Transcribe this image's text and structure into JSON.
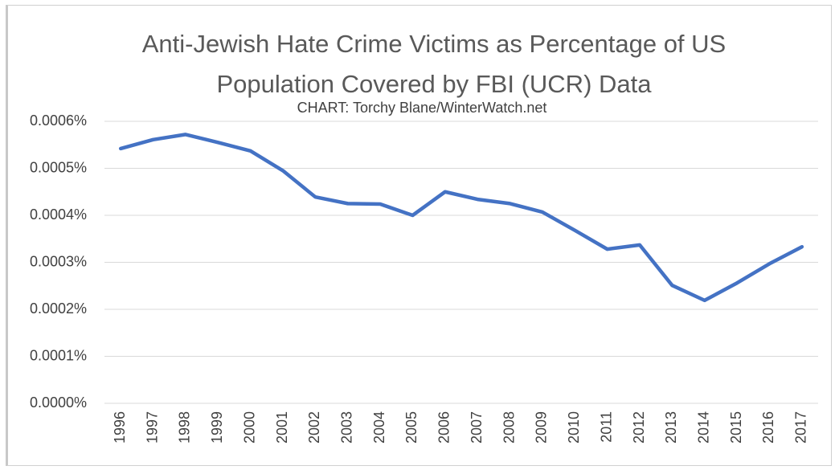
{
  "chart_data": {
    "type": "line",
    "title": "Anti-Jewish Hate Crime Victims as Percentage of US Population Covered by FBI (UCR) Data",
    "subtitle": "CHART: Torchy Blane/WinterWatch.net",
    "categories": [
      "1996",
      "1997",
      "1998",
      "1999",
      "2000",
      "2001",
      "2002",
      "2003",
      "2004",
      "2005",
      "2006",
      "2007",
      "2008",
      "2009",
      "2010",
      "2011",
      "2012",
      "2013",
      "2014",
      "2015",
      "2016",
      "2017"
    ],
    "series": [
      {
        "name": "Anti-Jewish Hate Crime Victims",
        "color": "#4472c4",
        "values": [
          0.000542,
          0.000561,
          0.000572,
          0.000555,
          0.000537,
          0.000495,
          0.000439,
          0.000425,
          0.000424,
          0.0004,
          0.00045,
          0.000434,
          0.000425,
          0.000407,
          0.000368,
          0.000328,
          0.000337,
          0.000251,
          0.000219,
          0.000256,
          0.000297,
          0.000333
        ]
      }
    ],
    "ylim": [
      0,
      0.0006
    ],
    "yticks": [
      {
        "value": 0,
        "label": "0.0000%"
      },
      {
        "value": 0.0001,
        "label": "0.0001%"
      },
      {
        "value": 0.0002,
        "label": "0.0002%"
      },
      {
        "value": 0.0003,
        "label": "0.0003%"
      },
      {
        "value": 0.0004,
        "label": "0.0004%"
      },
      {
        "value": 0.0005,
        "label": "0.0005%"
      },
      {
        "value": 0.0006,
        "label": "0.0006%"
      }
    ],
    "grid": true
  }
}
